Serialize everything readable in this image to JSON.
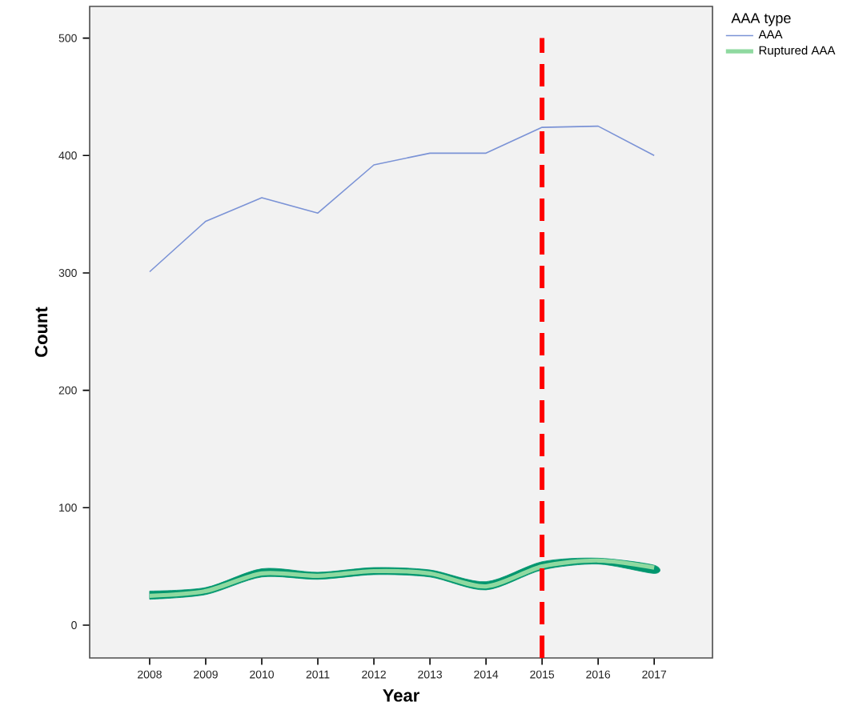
{
  "chart_data": {
    "type": "line",
    "xlabel": "Year",
    "ylabel": "Count",
    "legend_title": "AAA type",
    "x": [
      2008,
      2009,
      2010,
      2011,
      2012,
      2013,
      2014,
      2015,
      2016,
      2017
    ],
    "series": [
      {
        "name": "AAA",
        "color": "#7b93d6",
        "values": [
          301,
          344,
          364,
          351,
          392,
          402,
          402,
          424,
          425,
          400
        ]
      },
      {
        "name": "Ruptured AAA",
        "color": "#8fd9a0",
        "values": [
          25,
          29,
          44,
          42,
          46,
          44,
          33,
          50,
          55,
          49
        ],
        "lower": [
          22,
          26,
          41,
          39,
          43,
          41,
          30,
          47,
          52,
          44
        ],
        "upper": [
          29,
          32,
          48,
          45,
          49,
          47,
          37,
          54,
          57,
          51
        ]
      }
    ],
    "xlim": [
      2006.93,
      2018.04
    ],
    "ylim": [
      -28,
      527
    ],
    "xticks": [
      2008,
      2009,
      2010,
      2011,
      2012,
      2013,
      2014,
      2015,
      2016,
      2017
    ],
    "yticks": [
      0,
      100,
      200,
      300,
      400,
      500
    ],
    "ref_lines": [
      {
        "axis": "x",
        "value": 2015,
        "color": "#ff0000",
        "line_style": "dashed"
      }
    ],
    "grid": false,
    "legend": "top right",
    "marker": "none",
    "line_style": "solid"
  }
}
